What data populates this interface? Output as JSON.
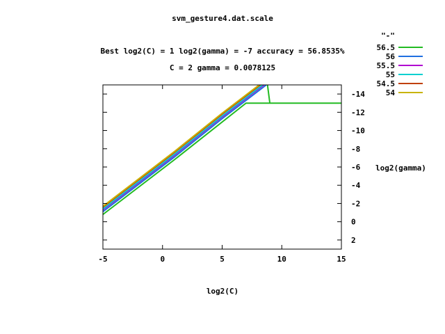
{
  "chart_data": {
    "type": "line",
    "title": "svm_gesture4.dat.scale",
    "subtitle_lines": [
      "Best log2(C) = 1  log2(gamma) = -7  accuracy = 56.8535%",
      "C = 2  gamma = 0.0078125"
    ],
    "xlabel": "log2(C)",
    "ylabel": "log2(gamma)",
    "xlim": [
      -5,
      15
    ],
    "ylim": [
      3,
      -15
    ],
    "x_ticks": [
      -5,
      0,
      5,
      10,
      15
    ],
    "y_ticks": [
      -14,
      -12,
      -10,
      -8,
      -6,
      -4,
      -2,
      0,
      2
    ],
    "y_axis_side": "right",
    "legend_title": "\"-\"",
    "legend_position": "outside-top-right",
    "series": [
      {
        "name": "56.5",
        "color": "#22bb22",
        "points": [
          [
            -5,
            -0.8
          ],
          [
            -3,
            -2.8
          ],
          [
            1,
            -6.8
          ],
          [
            7,
            -13.0
          ],
          [
            15,
            -13.0
          ]
        ],
        "branch": [
          [
            8.8,
            -15.0
          ],
          [
            9.0,
            -13.0
          ]
        ]
      },
      {
        "name": "56",
        "color": "#1f6fe0",
        "points": [
          [
            -5,
            -1.1
          ],
          [
            -3,
            -3.1
          ],
          [
            1,
            -7.1
          ],
          [
            5,
            -11.3
          ],
          [
            8.7,
            -15.0
          ]
        ]
      },
      {
        "name": "55.5",
        "color": "#b000d0",
        "points": [
          [
            -5,
            -1.3
          ],
          [
            -3,
            -3.3
          ],
          [
            1,
            -7.3
          ],
          [
            5,
            -11.5
          ],
          [
            8.5,
            -15.0
          ]
        ]
      },
      {
        "name": "55",
        "color": "#00d0d0",
        "points": [
          [
            -5,
            -1.4
          ],
          [
            -3,
            -3.4
          ],
          [
            1,
            -7.4
          ],
          [
            5,
            -11.6
          ],
          [
            8.4,
            -15.0
          ]
        ]
      },
      {
        "name": "54.5",
        "color": "#c04000",
        "points": [
          [
            -5,
            -1.6
          ],
          [
            -3,
            -3.6
          ],
          [
            1,
            -7.6
          ],
          [
            5,
            -11.8
          ],
          [
            8.2,
            -15.0
          ]
        ]
      },
      {
        "name": "54",
        "color": "#c8b400",
        "points": [
          [
            -5,
            -1.7
          ],
          [
            -3,
            -3.7
          ],
          [
            1,
            -7.7
          ],
          [
            5,
            -11.9
          ],
          [
            8.1,
            -15.0
          ]
        ]
      }
    ]
  }
}
